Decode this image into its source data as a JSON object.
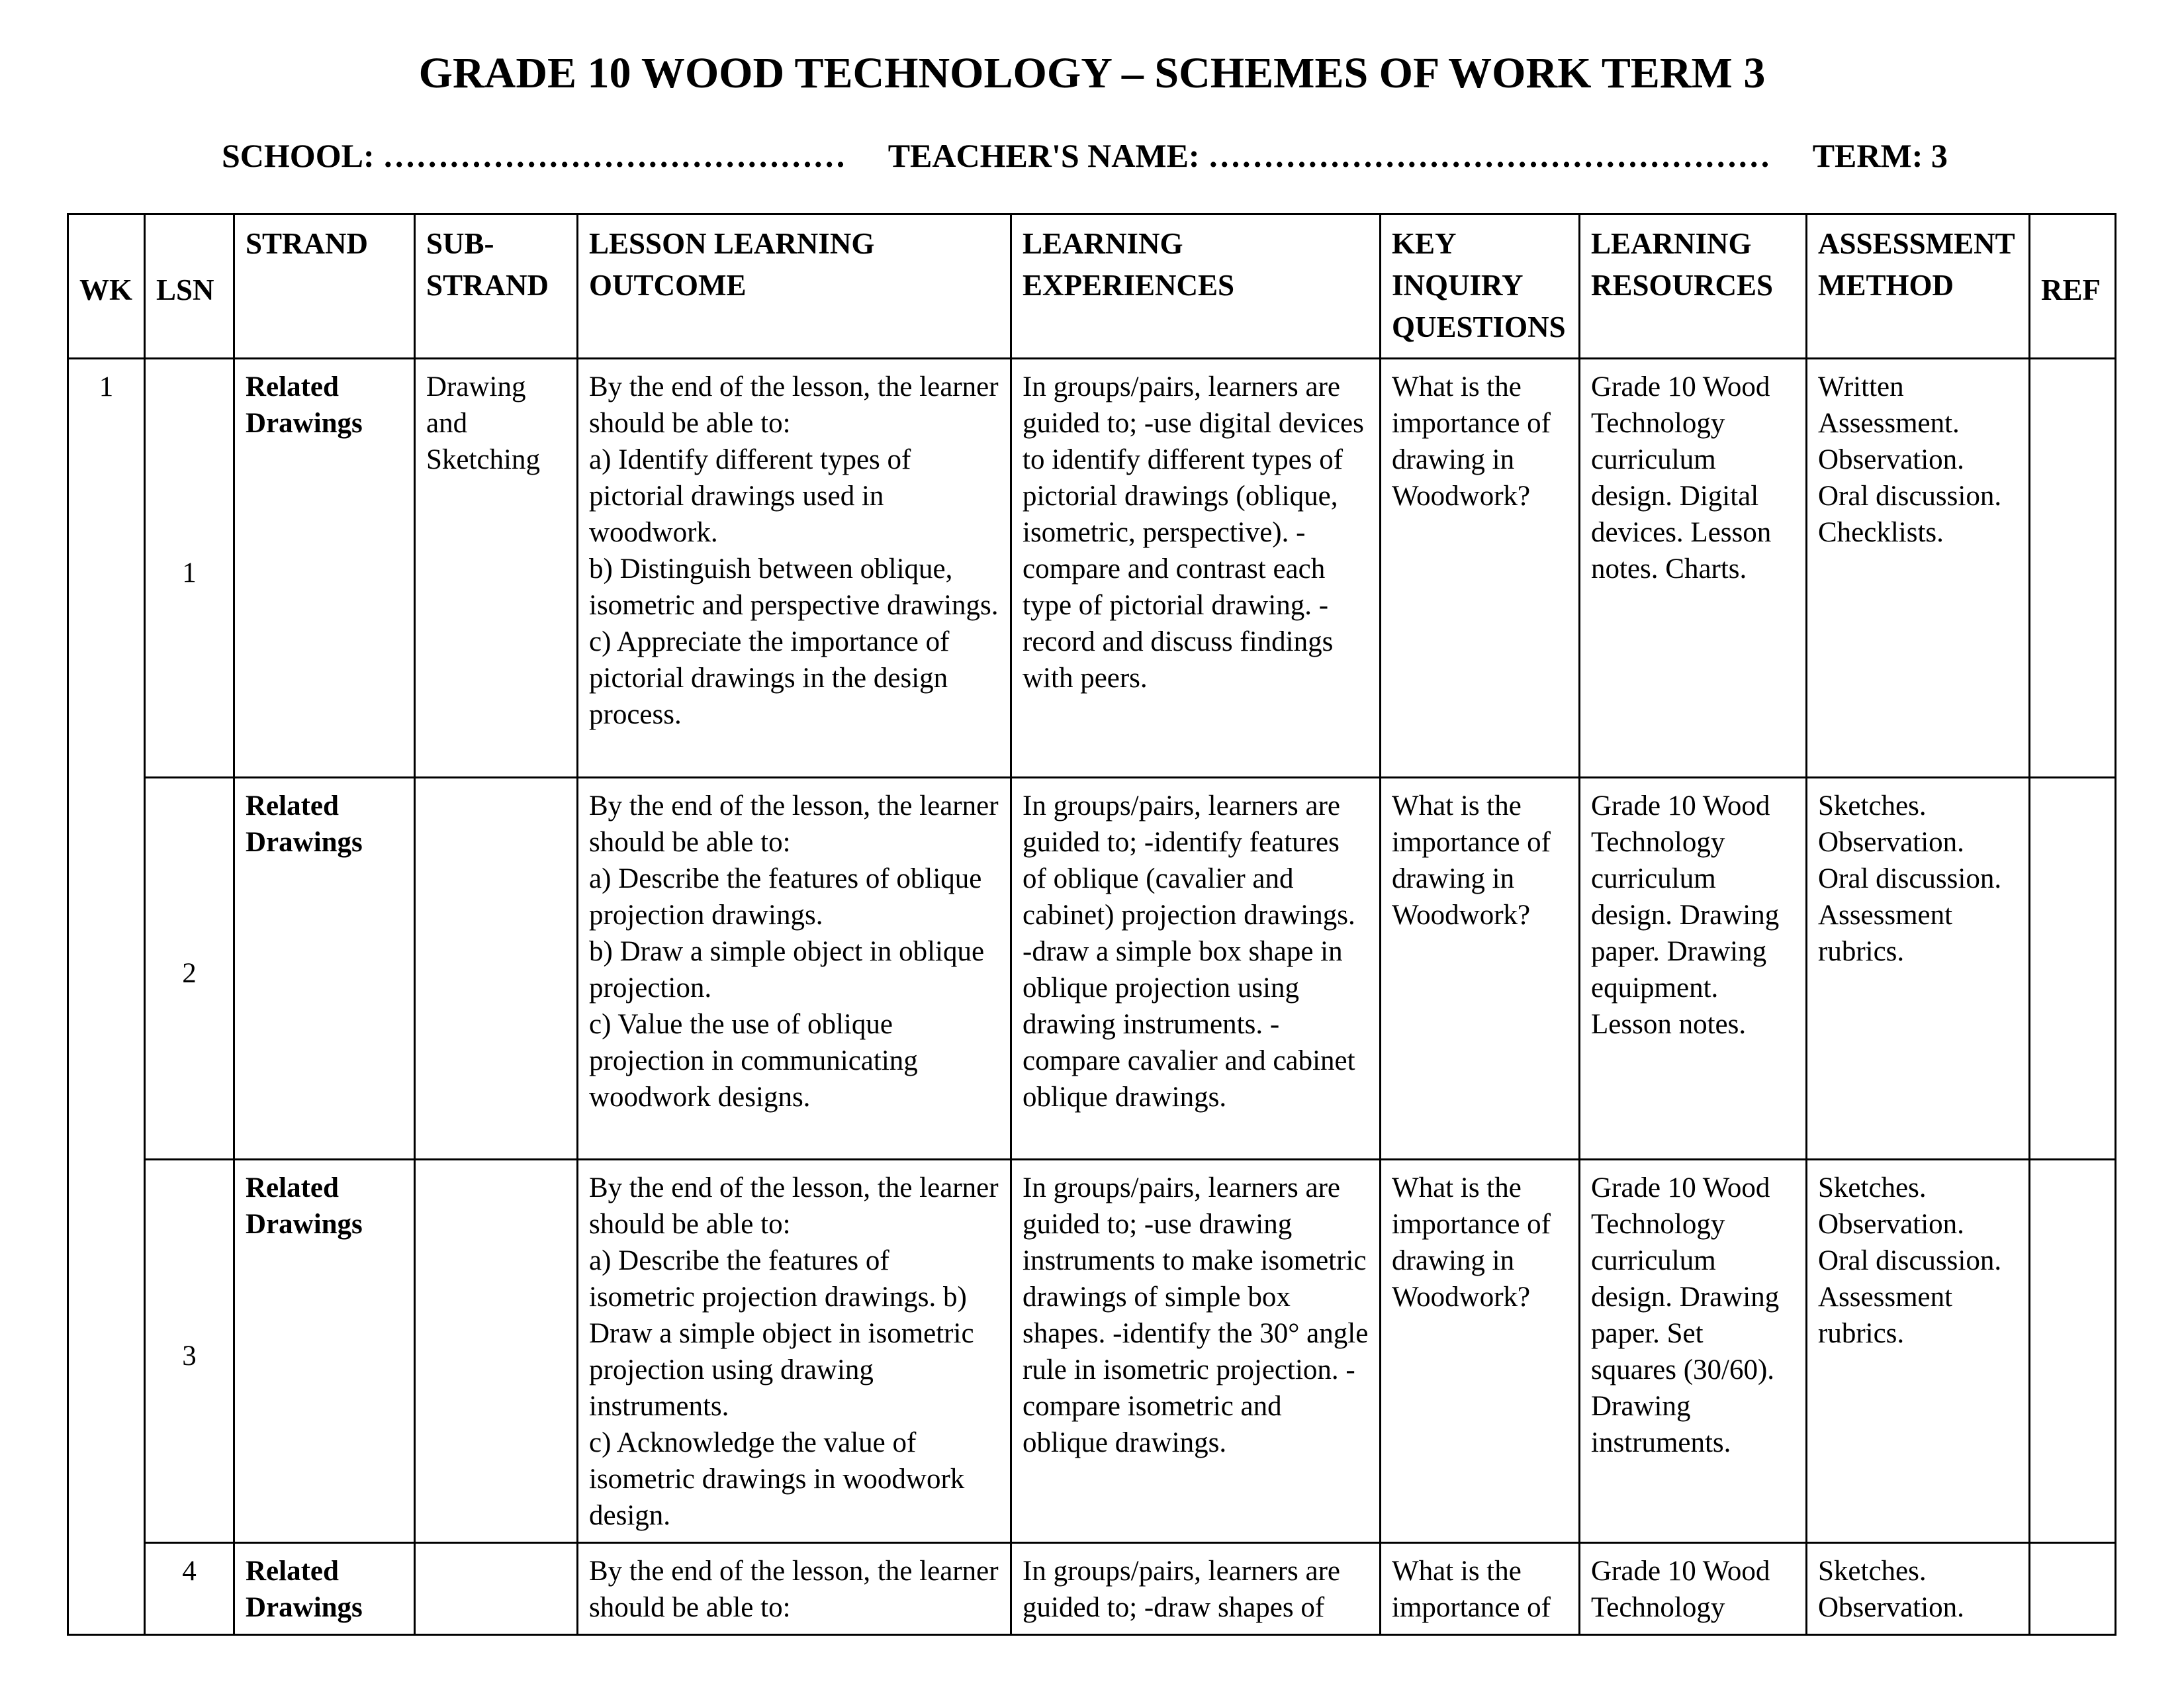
{
  "title": "GRADE 10 WOOD TECHNOLOGY – SCHEMES OF WORK TERM 3",
  "meta": {
    "school": "SCHOOL: ……………………………………",
    "teacher": "TEACHER'S NAME: ……………………………………………",
    "term": "TERM: 3"
  },
  "headers": [
    "WK",
    "LSN",
    "STRAND",
    "SUB-\nSTRAND",
    "LESSON LEARNING\nOUTCOME",
    "LEARNING\nEXPERIENCES",
    "KEY\nINQUIRY\nQUESTIONS",
    "LEARNING\nRESOURCES",
    "ASSESSMENT\nMETHOD",
    "REF"
  ],
  "week": "1",
  "rows": [
    {
      "lsn": "1",
      "strand": "Related Drawings",
      "sub_strand": "Drawing and Sketching",
      "outcome": "By the end of the lesson, the learner should be able to:\na) Identify different types of pictorial drawings used in woodwork.\nb) Distinguish between oblique, isometric and perspective drawings.\nc) Appreciate the importance of pictorial drawings in the design process.",
      "experiences": "In groups/pairs, learners are guided to; -use digital devices to identify different types of pictorial drawings (oblique, isometric, perspective). -compare and contrast each type of pictorial drawing. -record and discuss findings with peers.",
      "questions": "What is the importance of drawing in Woodwork?",
      "resources": "Grade 10 Wood Technology curriculum design. Digital devices. Lesson notes. Charts.",
      "assessment": "Written Assessment. Observation. Oral discussion. Checklists.",
      "ref": ""
    },
    {
      "lsn": "2",
      "strand": "Related Drawings",
      "sub_strand": "",
      "outcome": "By the end of the lesson, the learner should be able to:\na) Describe the features of oblique projection drawings.\nb) Draw a simple object in oblique projection.\nc) Value the use of oblique projection in communicating woodwork designs.",
      "experiences": "In groups/pairs, learners are guided to; -identify features of oblique (cavalier and cabinet) projection drawings. -draw a simple box shape in oblique projection using drawing instruments. -compare cavalier and cabinet oblique drawings.",
      "questions": "What is the importance of drawing in Woodwork?",
      "resources": "Grade 10 Wood Technology curriculum design. Drawing paper. Drawing equipment. Lesson notes.",
      "assessment": "Sketches. Observation. Oral discussion. Assessment rubrics.",
      "ref": ""
    },
    {
      "lsn": "3",
      "strand": "Related Drawings",
      "sub_strand": "",
      "outcome": "By the end of the lesson, the learner should be able to:\na) Describe the features of isometric projection drawings. b) Draw a simple object in isometric projection using drawing instruments.\nc) Acknowledge the value of isometric drawings in woodwork design.",
      "experiences": "In groups/pairs, learners are guided to; -use drawing instruments to make isometric drawings of simple box shapes. -identify the 30° angle rule in isometric projection. -compare isometric and oblique drawings.",
      "questions": "What is the importance of drawing in Woodwork?",
      "resources": "Grade 10 Wood Technology curriculum design. Drawing paper. Set squares (30/60). Drawing instruments.",
      "assessment": "Sketches. Observation. Oral discussion. Assessment rubrics.",
      "ref": ""
    },
    {
      "lsn": "4",
      "strand": "Related Drawings",
      "sub_strand": "",
      "outcome": "By the end of the lesson, the learner should be able to:",
      "experiences": "In groups/pairs, learners are guided to; -draw shapes of",
      "questions": "What is the importance of",
      "resources": "Grade 10 Wood Technology",
      "assessment": "Sketches. Observation.",
      "ref": ""
    }
  ]
}
